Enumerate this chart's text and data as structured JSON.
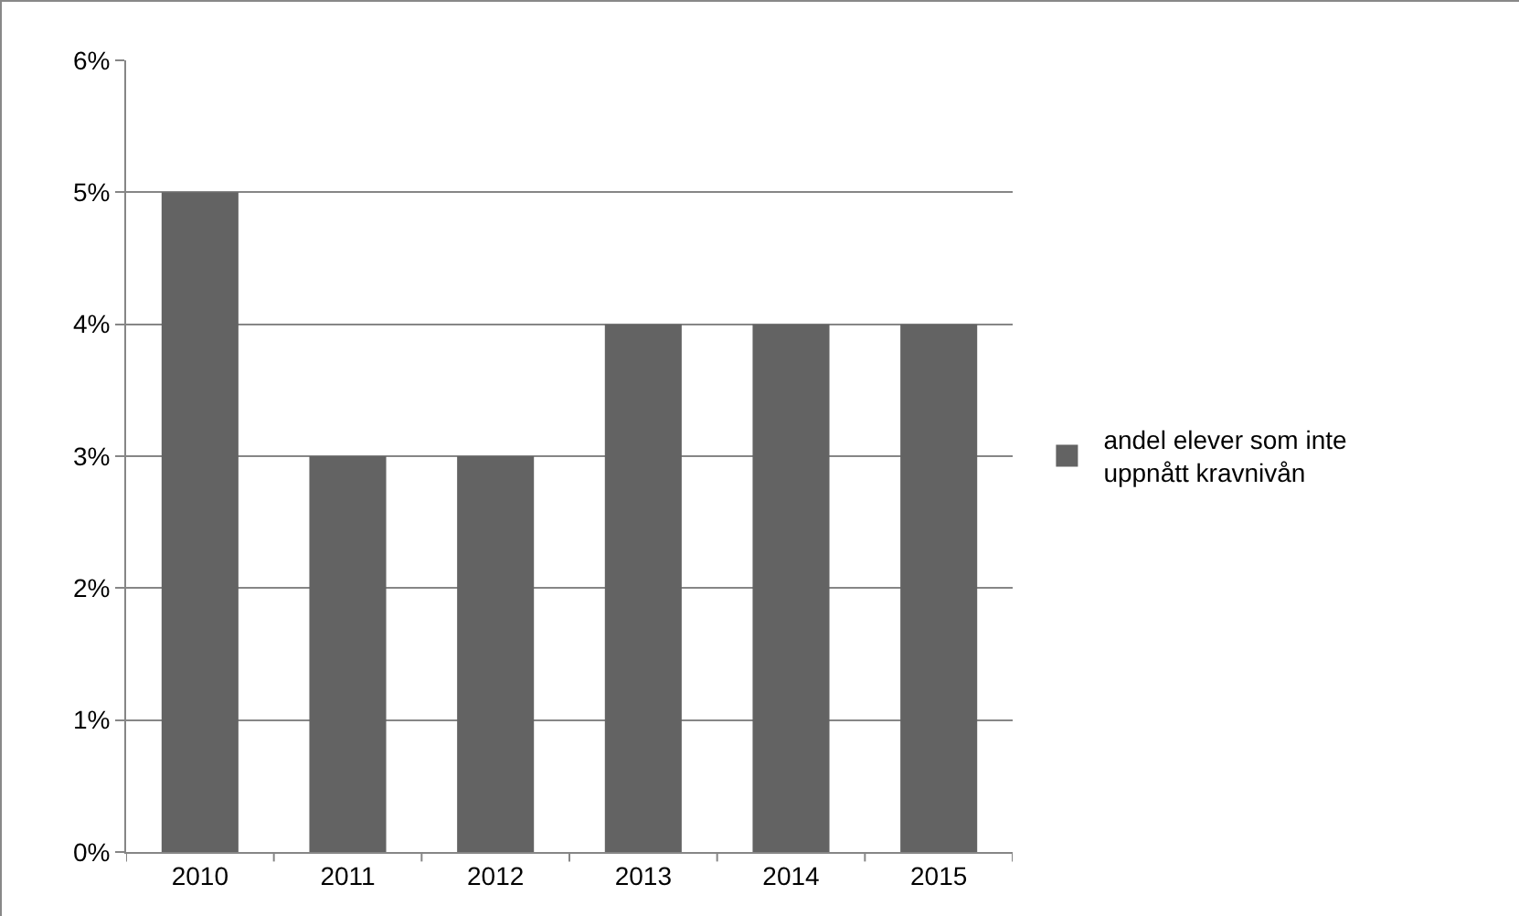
{
  "chart_data": {
    "type": "bar",
    "categories": [
      "2010",
      "2011",
      "2012",
      "2013",
      "2014",
      "2015"
    ],
    "series": [
      {
        "name": "andel elever som inte uppnått kravnivån",
        "color": "#636363",
        "values": [
          5,
          3,
          3,
          4,
          4,
          4
        ]
      }
    ],
    "ylim": [
      0,
      6
    ],
    "yticks": [
      {
        "value": 0,
        "label": "0%"
      },
      {
        "value": 1,
        "label": "1%"
      },
      {
        "value": 2,
        "label": "2%"
      },
      {
        "value": 3,
        "label": "3%"
      },
      {
        "value": 4,
        "label": "4%"
      },
      {
        "value": 5,
        "label": "5%"
      },
      {
        "value": 6,
        "label": "6%"
      }
    ],
    "grid": "y",
    "legend": "right"
  }
}
